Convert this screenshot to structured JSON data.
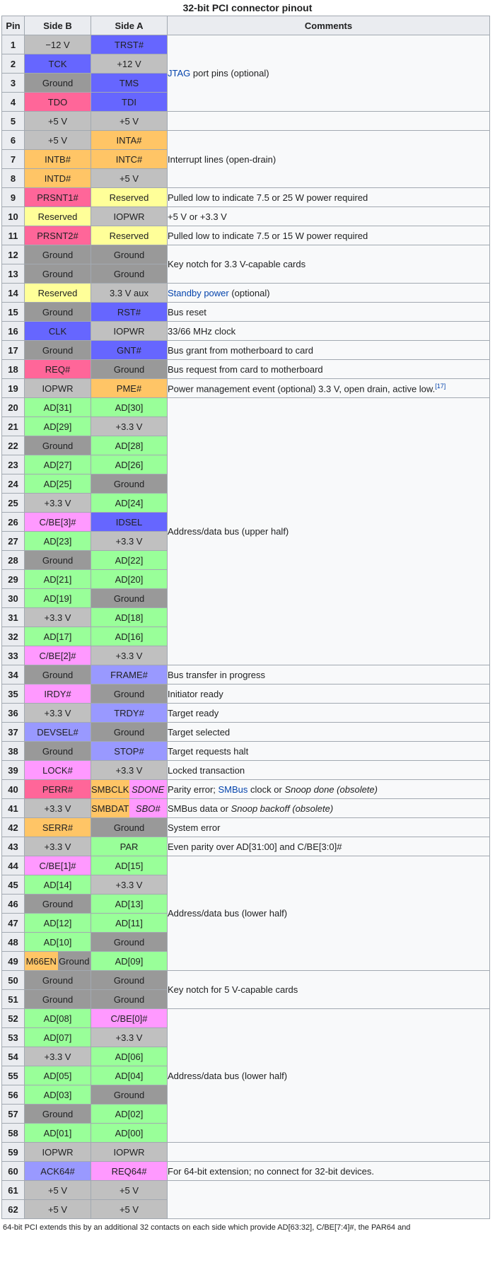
{
  "caption": "32-bit PCI connector pinout",
  "headers": {
    "pin": "Pin",
    "side_b": "Side B",
    "side_a": "Side A",
    "comments": "Comments"
  },
  "colors": {
    "gray": "#c0c0c0",
    "ground": "#999999",
    "blue": "#6666ff",
    "lightblue": "#9999ff",
    "pink": "#ff6699",
    "orange": "#ffc566",
    "yellow": "#ffff99",
    "green": "#99ff99",
    "magenta": "#ff99ff"
  },
  "rows": [
    {
      "pin": "1",
      "b": {
        "t": "−12 V",
        "c": "gray"
      },
      "a": {
        "t": "TRST#",
        "c": "blue"
      }
    },
    {
      "pin": "2",
      "b": {
        "t": "TCK",
        "c": "blue"
      },
      "a": {
        "t": "+12 V",
        "c": "gray"
      }
    },
    {
      "pin": "3",
      "b": {
        "t": "Ground",
        "c": "ground"
      },
      "a": {
        "t": "TMS",
        "c": "blue"
      }
    },
    {
      "pin": "4",
      "b": {
        "t": "TDO",
        "c": "pink"
      },
      "a": {
        "t": "TDI",
        "c": "blue"
      }
    },
    {
      "pin": "5",
      "b": {
        "t": "+5 V",
        "c": "gray"
      },
      "a": {
        "t": "+5 V",
        "c": "gray"
      }
    },
    {
      "pin": "6",
      "b": {
        "t": "+5 V",
        "c": "gray"
      },
      "a": {
        "t": "INTA#",
        "c": "orange"
      }
    },
    {
      "pin": "7",
      "b": {
        "t": "INTB#",
        "c": "orange"
      },
      "a": {
        "t": "INTC#",
        "c": "orange"
      }
    },
    {
      "pin": "8",
      "b": {
        "t": "INTD#",
        "c": "orange"
      },
      "a": {
        "t": "+5 V",
        "c": "gray"
      }
    },
    {
      "pin": "9",
      "b": {
        "t": "PRSNT1#",
        "c": "pink"
      },
      "a": {
        "t": "Reserved",
        "c": "yellow"
      }
    },
    {
      "pin": "10",
      "b": {
        "t": "Reserved",
        "c": "yellow"
      },
      "a": {
        "t": "IOPWR",
        "c": "gray"
      }
    },
    {
      "pin": "11",
      "b": {
        "t": "PRSNT2#",
        "c": "pink"
      },
      "a": {
        "t": "Reserved",
        "c": "yellow"
      }
    },
    {
      "pin": "12",
      "b": {
        "t": "Ground",
        "c": "ground"
      },
      "a": {
        "t": "Ground",
        "c": "ground"
      }
    },
    {
      "pin": "13",
      "b": {
        "t": "Ground",
        "c": "ground"
      },
      "a": {
        "t": "Ground",
        "c": "ground"
      }
    },
    {
      "pin": "14",
      "b": {
        "t": "Reserved",
        "c": "yellow"
      },
      "a": {
        "t": "3.3 V aux",
        "c": "gray"
      }
    },
    {
      "pin": "15",
      "b": {
        "t": "Ground",
        "c": "ground"
      },
      "a": {
        "t": "RST#",
        "c": "blue"
      }
    },
    {
      "pin": "16",
      "b": {
        "t": "CLK",
        "c": "blue"
      },
      "a": {
        "t": "IOPWR",
        "c": "gray"
      }
    },
    {
      "pin": "17",
      "b": {
        "t": "Ground",
        "c": "ground"
      },
      "a": {
        "t": "GNT#",
        "c": "blue"
      }
    },
    {
      "pin": "18",
      "b": {
        "t": "REQ#",
        "c": "pink"
      },
      "a": {
        "t": "Ground",
        "c": "ground"
      }
    },
    {
      "pin": "19",
      "b": {
        "t": "IOPWR",
        "c": "gray"
      },
      "a": {
        "t": "PME#",
        "c": "orange"
      }
    },
    {
      "pin": "20",
      "b": {
        "t": "AD[31]",
        "c": "green"
      },
      "a": {
        "t": "AD[30]",
        "c": "green"
      }
    },
    {
      "pin": "21",
      "b": {
        "t": "AD[29]",
        "c": "green"
      },
      "a": {
        "t": "+3.3 V",
        "c": "gray"
      }
    },
    {
      "pin": "22",
      "b": {
        "t": "Ground",
        "c": "ground"
      },
      "a": {
        "t": "AD[28]",
        "c": "green"
      }
    },
    {
      "pin": "23",
      "b": {
        "t": "AD[27]",
        "c": "green"
      },
      "a": {
        "t": "AD[26]",
        "c": "green"
      }
    },
    {
      "pin": "24",
      "b": {
        "t": "AD[25]",
        "c": "green"
      },
      "a": {
        "t": "Ground",
        "c": "ground"
      }
    },
    {
      "pin": "25",
      "b": {
        "t": "+3.3 V",
        "c": "gray"
      },
      "a": {
        "t": "AD[24]",
        "c": "green"
      }
    },
    {
      "pin": "26",
      "b": {
        "t": "C/BE[3]#",
        "c": "magenta"
      },
      "a": {
        "t": "IDSEL",
        "c": "blue"
      }
    },
    {
      "pin": "27",
      "b": {
        "t": "AD[23]",
        "c": "green"
      },
      "a": {
        "t": "+3.3 V",
        "c": "gray"
      }
    },
    {
      "pin": "28",
      "b": {
        "t": "Ground",
        "c": "ground"
      },
      "a": {
        "t": "AD[22]",
        "c": "green"
      }
    },
    {
      "pin": "29",
      "b": {
        "t": "AD[21]",
        "c": "green"
      },
      "a": {
        "t": "AD[20]",
        "c": "green"
      }
    },
    {
      "pin": "30",
      "b": {
        "t": "AD[19]",
        "c": "green"
      },
      "a": {
        "t": "Ground",
        "c": "ground"
      }
    },
    {
      "pin": "31",
      "b": {
        "t": "+3.3 V",
        "c": "gray"
      },
      "a": {
        "t": "AD[18]",
        "c": "green"
      }
    },
    {
      "pin": "32",
      "b": {
        "t": "AD[17]",
        "c": "green"
      },
      "a": {
        "t": "AD[16]",
        "c": "green"
      }
    },
    {
      "pin": "33",
      "b": {
        "t": "C/BE[2]#",
        "c": "magenta"
      },
      "a": {
        "t": "+3.3 V",
        "c": "gray"
      }
    },
    {
      "pin": "34",
      "b": {
        "t": "Ground",
        "c": "ground"
      },
      "a": {
        "t": "FRAME#",
        "c": "lightblue"
      }
    },
    {
      "pin": "35",
      "b": {
        "t": "IRDY#",
        "c": "magenta"
      },
      "a": {
        "t": "Ground",
        "c": "ground"
      }
    },
    {
      "pin": "36",
      "b": {
        "t": "+3.3 V",
        "c": "gray"
      },
      "a": {
        "t": "TRDY#",
        "c": "lightblue"
      }
    },
    {
      "pin": "37",
      "b": {
        "t": "DEVSEL#",
        "c": "lightblue"
      },
      "a": {
        "t": "Ground",
        "c": "ground"
      }
    },
    {
      "pin": "38",
      "b": {
        "t": "Ground",
        "c": "ground"
      },
      "a": {
        "t": "STOP#",
        "c": "lightblue"
      }
    },
    {
      "pin": "39",
      "b": {
        "t": "LOCK#",
        "c": "magenta"
      },
      "a": {
        "t": "+3.3 V",
        "c": "gray"
      }
    },
    {
      "pin": "40",
      "b": {
        "t": "PERR#",
        "c": "pink"
      },
      "a": {
        "t": "SMBCLK",
        "c": "orange",
        "t2": "SDONE",
        "c2": "magenta",
        "i2": true
      }
    },
    {
      "pin": "41",
      "b": {
        "t": "+3.3 V",
        "c": "gray"
      },
      "a": {
        "t": "SMBDAT",
        "c": "orange",
        "t2": "SBO#",
        "c2": "magenta",
        "i2": true
      }
    },
    {
      "pin": "42",
      "b": {
        "t": "SERR#",
        "c": "orange"
      },
      "a": {
        "t": "Ground",
        "c": "ground"
      }
    },
    {
      "pin": "43",
      "b": {
        "t": "+3.3 V",
        "c": "gray"
      },
      "a": {
        "t": "PAR",
        "c": "green"
      }
    },
    {
      "pin": "44",
      "b": {
        "t": "C/BE[1]#",
        "c": "magenta"
      },
      "a": {
        "t": "AD[15]",
        "c": "green"
      }
    },
    {
      "pin": "45",
      "b": {
        "t": "AD[14]",
        "c": "green"
      },
      "a": {
        "t": "+3.3 V",
        "c": "gray"
      }
    },
    {
      "pin": "46",
      "b": {
        "t": "Ground",
        "c": "ground"
      },
      "a": {
        "t": "AD[13]",
        "c": "green"
      }
    },
    {
      "pin": "47",
      "b": {
        "t": "AD[12]",
        "c": "green"
      },
      "a": {
        "t": "AD[11]",
        "c": "green"
      }
    },
    {
      "pin": "48",
      "b": {
        "t": "AD[10]",
        "c": "green"
      },
      "a": {
        "t": "Ground",
        "c": "ground"
      }
    },
    {
      "pin": "49",
      "b": {
        "t": "M66EN",
        "c": "orange",
        "t2": "Ground",
        "c2": "ground"
      },
      "a": {
        "t": "AD[09]",
        "c": "green"
      }
    },
    {
      "pin": "50",
      "b": {
        "t": "Ground",
        "c": "ground"
      },
      "a": {
        "t": "Ground",
        "c": "ground"
      }
    },
    {
      "pin": "51",
      "b": {
        "t": "Ground",
        "c": "ground"
      },
      "a": {
        "t": "Ground",
        "c": "ground"
      }
    },
    {
      "pin": "52",
      "b": {
        "t": "AD[08]",
        "c": "green"
      },
      "a": {
        "t": "C/BE[0]#",
        "c": "magenta"
      }
    },
    {
      "pin": "53",
      "b": {
        "t": "AD[07]",
        "c": "green"
      },
      "a": {
        "t": "+3.3 V",
        "c": "gray"
      }
    },
    {
      "pin": "54",
      "b": {
        "t": "+3.3 V",
        "c": "gray"
      },
      "a": {
        "t": "AD[06]",
        "c": "green"
      }
    },
    {
      "pin": "55",
      "b": {
        "t": "AD[05]",
        "c": "green"
      },
      "a": {
        "t": "AD[04]",
        "c": "green"
      }
    },
    {
      "pin": "56",
      "b": {
        "t": "AD[03]",
        "c": "green"
      },
      "a": {
        "t": "Ground",
        "c": "ground"
      }
    },
    {
      "pin": "57",
      "b": {
        "t": "Ground",
        "c": "ground"
      },
      "a": {
        "t": "AD[02]",
        "c": "green"
      }
    },
    {
      "pin": "58",
      "b": {
        "t": "AD[01]",
        "c": "green"
      },
      "a": {
        "t": "AD[00]",
        "c": "green"
      }
    },
    {
      "pin": "59",
      "b": {
        "t": "IOPWR",
        "c": "gray"
      },
      "a": {
        "t": "IOPWR",
        "c": "gray"
      }
    },
    {
      "pin": "60",
      "b": {
        "t": "ACK64#",
        "c": "lightblue"
      },
      "a": {
        "t": "REQ64#",
        "c": "magenta"
      }
    },
    {
      "pin": "61",
      "b": {
        "t": "+5 V",
        "c": "gray"
      },
      "a": {
        "t": "+5 V",
        "c": "gray"
      }
    },
    {
      "pin": "62",
      "b": {
        "t": "+5 V",
        "c": "gray"
      },
      "a": {
        "t": "+5 V",
        "c": "gray"
      }
    }
  ],
  "comments": [
    {
      "start": 1,
      "span": 4,
      "parts": [
        {
          "t": "JTAG",
          "link": true
        },
        {
          "t": " port pins (optional)"
        }
      ]
    },
    {
      "start": 5,
      "span": 1,
      "parts": []
    },
    {
      "start": 6,
      "span": 3,
      "parts": [
        {
          "t": "Interrupt lines (open-drain)"
        }
      ]
    },
    {
      "start": 9,
      "span": 1,
      "parts": [
        {
          "t": "Pulled low to indicate 7.5 or 25 W power required"
        }
      ]
    },
    {
      "start": 10,
      "span": 1,
      "parts": [
        {
          "t": "+5 V or +3.3 V"
        }
      ]
    },
    {
      "start": 11,
      "span": 1,
      "parts": [
        {
          "t": "Pulled low to indicate 7.5 or 15 W power required"
        }
      ]
    },
    {
      "start": 12,
      "span": 2,
      "parts": [
        {
          "t": "Key notch for 3.3 V-capable cards"
        }
      ]
    },
    {
      "start": 14,
      "span": 1,
      "parts": [
        {
          "t": "Standby power",
          "link": true
        },
        {
          "t": " (optional)"
        }
      ]
    },
    {
      "start": 15,
      "span": 1,
      "parts": [
        {
          "t": "Bus reset"
        }
      ]
    },
    {
      "start": 16,
      "span": 1,
      "parts": [
        {
          "t": "33/66 MHz clock"
        }
      ]
    },
    {
      "start": 17,
      "span": 1,
      "parts": [
        {
          "t": "Bus grant from motherboard to card"
        }
      ]
    },
    {
      "start": 18,
      "span": 1,
      "parts": [
        {
          "t": "Bus request from card to motherboard"
        }
      ]
    },
    {
      "start": 19,
      "span": 1,
      "parts": [
        {
          "t": "Power management event (optional) 3.3 V, open drain, active low."
        },
        {
          "t": "[17]",
          "sup": true
        }
      ]
    },
    {
      "start": 20,
      "span": 14,
      "parts": [
        {
          "t": "Address/data bus (upper half)"
        }
      ]
    },
    {
      "start": 34,
      "span": 1,
      "parts": [
        {
          "t": "Bus transfer in progress"
        }
      ]
    },
    {
      "start": 35,
      "span": 1,
      "parts": [
        {
          "t": "Initiator ready"
        }
      ]
    },
    {
      "start": 36,
      "span": 1,
      "parts": [
        {
          "t": "Target ready"
        }
      ]
    },
    {
      "start": 37,
      "span": 1,
      "parts": [
        {
          "t": "Target selected"
        }
      ]
    },
    {
      "start": 38,
      "span": 1,
      "parts": [
        {
          "t": "Target requests halt"
        }
      ]
    },
    {
      "start": 39,
      "span": 1,
      "parts": [
        {
          "t": "Locked transaction"
        }
      ]
    },
    {
      "start": 40,
      "span": 1,
      "parts": [
        {
          "t": "Parity error; "
        },
        {
          "t": "SMBus",
          "link": true
        },
        {
          "t": " clock or "
        },
        {
          "t": "Snoop done (obsolete)",
          "italic": true
        }
      ]
    },
    {
      "start": 41,
      "span": 1,
      "parts": [
        {
          "t": "SMBus data or "
        },
        {
          "t": "Snoop backoff (obsolete)",
          "italic": true
        }
      ]
    },
    {
      "start": 42,
      "span": 1,
      "parts": [
        {
          "t": "System error"
        }
      ]
    },
    {
      "start": 43,
      "span": 1,
      "parts": [
        {
          "t": "Even parity over AD[31:00] and C/BE[3:0]#"
        }
      ]
    },
    {
      "start": 44,
      "span": 6,
      "parts": [
        {
          "t": "Address/data bus (lower half)"
        }
      ]
    },
    {
      "start": 50,
      "span": 2,
      "parts": [
        {
          "t": "Key notch for 5 V-capable cards"
        }
      ]
    },
    {
      "start": 52,
      "span": 7,
      "parts": [
        {
          "t": "Address/data bus (lower half)"
        }
      ]
    },
    {
      "start": 59,
      "span": 1,
      "parts": []
    },
    {
      "start": 60,
      "span": 1,
      "parts": [
        {
          "t": "For 64-bit extension; no connect for 32-bit devices."
        }
      ]
    },
    {
      "start": 61,
      "span": 2,
      "parts": []
    }
  ],
  "footer": "64-bit PCI extends this by an additional 32 contacts on each side which provide AD[63:32], C/BE[7:4]#, the PAR64 and"
}
